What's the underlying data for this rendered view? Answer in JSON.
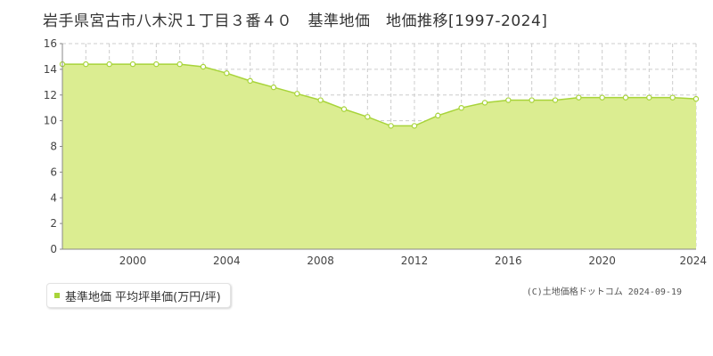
{
  "chart_data": {
    "type": "area",
    "title": "岩手県宮古市八木沢１丁目３番４０　基準地価　地価推移[1997-2024]",
    "xlim": [
      1997,
      2024
    ],
    "ylim": [
      0,
      16
    ],
    "x_ticks": [
      2000,
      2004,
      2008,
      2012,
      2016,
      2020,
      2024
    ],
    "y_ticks": [
      0,
      2,
      4,
      6,
      8,
      10,
      12,
      14,
      16
    ],
    "grid": true,
    "legend_position": "bottom-left",
    "series": [
      {
        "name": "基準地価 平均坪単価(万円/坪)",
        "color": "#a8d43a",
        "fill": "#dbed91",
        "x": [
          1997,
          1998,
          1999,
          2000,
          2001,
          2002,
          2003,
          2004,
          2005,
          2006,
          2007,
          2008,
          2009,
          2010,
          2011,
          2012,
          2013,
          2014,
          2015,
          2016,
          2017,
          2018,
          2019,
          2020,
          2021,
          2022,
          2023,
          2024
        ],
        "values": [
          14.4,
          14.4,
          14.4,
          14.4,
          14.4,
          14.4,
          14.2,
          13.7,
          13.1,
          12.6,
          12.1,
          11.6,
          10.9,
          10.3,
          9.6,
          9.6,
          10.4,
          11.0,
          11.4,
          11.6,
          11.6,
          11.6,
          11.8,
          11.8,
          11.8,
          11.8,
          11.8,
          11.7
        ]
      }
    ]
  },
  "legend": {
    "label": "基準地価 平均坪単価(万円/坪)"
  },
  "footer": {
    "copyright": "(C)土地価格ドットコム 2024-09-19"
  }
}
